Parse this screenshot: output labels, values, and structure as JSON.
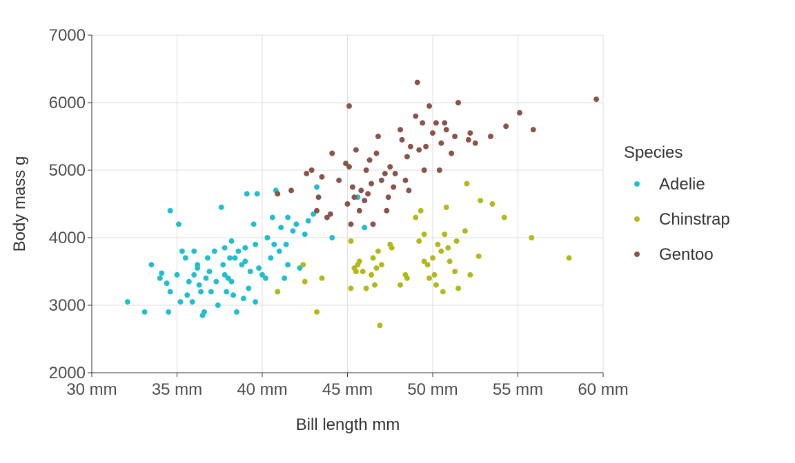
{
  "chart_data": {
    "type": "scatter",
    "title": "",
    "xlabel": "Bill length mm",
    "ylabel": "Body mass g",
    "xlim": [
      30,
      60
    ],
    "ylim": [
      2000,
      7000
    ],
    "x_ticks": [
      "30 mm",
      "35 mm",
      "40 mm",
      "45 mm",
      "50 mm",
      "55 mm",
      "60 mm"
    ],
    "y_ticks": [
      "2000",
      "3000",
      "4000",
      "5000",
      "6000",
      "7000"
    ],
    "grid": true,
    "legend": {
      "title": "Species",
      "placement": "right"
    },
    "series": [
      {
        "name": "Adelie",
        "color": "#1fbfcf",
        "points": [
          [
            32.1,
            3050
          ],
          [
            33.1,
            2900
          ],
          [
            33.5,
            3600
          ],
          [
            34.0,
            3400
          ],
          [
            34.1,
            3475
          ],
          [
            34.4,
            3325
          ],
          [
            34.5,
            2900
          ],
          [
            34.6,
            4400
          ],
          [
            34.6,
            3200
          ],
          [
            35.0,
            3450
          ],
          [
            35.1,
            4200
          ],
          [
            35.2,
            3050
          ],
          [
            35.3,
            3800
          ],
          [
            35.5,
            3700
          ],
          [
            35.6,
            3150
          ],
          [
            35.7,
            3350
          ],
          [
            35.9,
            3050
          ],
          [
            36.0,
            3450
          ],
          [
            36.0,
            3800
          ],
          [
            36.2,
            3550
          ],
          [
            36.3,
            3300
          ],
          [
            36.4,
            3200
          ],
          [
            36.5,
            2850
          ],
          [
            36.6,
            2900
          ],
          [
            36.7,
            3400
          ],
          [
            36.8,
            3700
          ],
          [
            36.9,
            3500
          ],
          [
            37.0,
            3200
          ],
          [
            37.2,
            3800
          ],
          [
            37.3,
            3350
          ],
          [
            37.4,
            3000
          ],
          [
            37.6,
            4450
          ],
          [
            37.7,
            3600
          ],
          [
            37.8,
            3850
          ],
          [
            37.9,
            3200
          ],
          [
            38.0,
            3400
          ],
          [
            38.1,
            3700
          ],
          [
            38.2,
            3950
          ],
          [
            38.3,
            3150
          ],
          [
            38.5,
            2900
          ],
          [
            38.6,
            3800
          ],
          [
            38.8,
            3600
          ],
          [
            38.9,
            3100
          ],
          [
            39.0,
            3650
          ],
          [
            39.1,
            4650
          ],
          [
            39.2,
            3250
          ],
          [
            39.3,
            3500
          ],
          [
            39.5,
            4200
          ],
          [
            39.6,
            3900
          ],
          [
            39.7,
            4650
          ],
          [
            39.8,
            3550
          ],
          [
            40.0,
            3450
          ],
          [
            40.2,
            3400
          ],
          [
            40.3,
            4000
          ],
          [
            40.5,
            3700
          ],
          [
            40.6,
            4300
          ],
          [
            40.8,
            4700
          ],
          [
            40.9,
            3200
          ],
          [
            41.0,
            3800
          ],
          [
            41.1,
            4150
          ],
          [
            41.3,
            3400
          ],
          [
            41.4,
            3900
          ],
          [
            41.5,
            4300
          ],
          [
            41.8,
            4100
          ],
          [
            42.0,
            4200
          ],
          [
            42.2,
            3550
          ],
          [
            42.5,
            4050
          ],
          [
            42.7,
            4250
          ],
          [
            43.0,
            4350
          ],
          [
            43.2,
            4750
          ],
          [
            44.1,
            4000
          ],
          [
            45.6,
            4600
          ],
          [
            46.0,
            4150
          ],
          [
            36.2,
            3600
          ],
          [
            37.8,
            3450
          ],
          [
            38.4,
            3700
          ],
          [
            39.0,
            3850
          ],
          [
            40.7,
            3900
          ],
          [
            41.5,
            3600
          ],
          [
            38.2,
            3350
          ],
          [
            39.6,
            3050
          ]
        ]
      },
      {
        "name": "Chinstrap",
        "color": "#b3b91a",
        "points": [
          [
            40.9,
            3200
          ],
          [
            42.4,
            3600
          ],
          [
            42.5,
            3350
          ],
          [
            43.2,
            2900
          ],
          [
            43.5,
            3400
          ],
          [
            45.2,
            3950
          ],
          [
            45.4,
            3550
          ],
          [
            45.5,
            3500
          ],
          [
            45.6,
            3600
          ],
          [
            45.7,
            3650
          ],
          [
            45.9,
            3500
          ],
          [
            46.1,
            3250
          ],
          [
            46.4,
            3450
          ],
          [
            46.5,
            3700
          ],
          [
            46.6,
            3300
          ],
          [
            46.8,
            3800
          ],
          [
            46.9,
            2700
          ],
          [
            47.0,
            3600
          ],
          [
            47.5,
            3900
          ],
          [
            47.6,
            3850
          ],
          [
            48.1,
            3300
          ],
          [
            48.5,
            3400
          ],
          [
            49.0,
            4300
          ],
          [
            49.2,
            3950
          ],
          [
            49.3,
            4400
          ],
          [
            49.5,
            4050
          ],
          [
            49.7,
            3600
          ],
          [
            49.8,
            3400
          ],
          [
            50.0,
            3700
          ],
          [
            50.1,
            3450
          ],
          [
            50.2,
            3300
          ],
          [
            50.3,
            3900
          ],
          [
            50.5,
            3800
          ],
          [
            50.7,
            4050
          ],
          [
            50.8,
            4450
          ],
          [
            51.0,
            3650
          ],
          [
            51.3,
            3500
          ],
          [
            51.4,
            3950
          ],
          [
            51.5,
            3250
          ],
          [
            52.0,
            4800
          ],
          [
            52.2,
            3450
          ],
          [
            52.7,
            3725
          ],
          [
            52.8,
            4550
          ],
          [
            53.5,
            4500
          ],
          [
            54.2,
            4300
          ],
          [
            55.8,
            4000
          ],
          [
            58.0,
            3700
          ],
          [
            45.2,
            3250
          ],
          [
            46.7,
            3550
          ],
          [
            48.4,
            3450
          ],
          [
            49.5,
            3650
          ],
          [
            50.9,
            3850
          ],
          [
            51.9,
            4100
          ],
          [
            50.6,
            3200
          ]
        ]
      },
      {
        "name": "Gentoo",
        "color": "#8b544a",
        "points": [
          [
            40.9,
            4650
          ],
          [
            41.7,
            4700
          ],
          [
            42.6,
            4950
          ],
          [
            42.9,
            5000
          ],
          [
            43.2,
            4400
          ],
          [
            43.3,
            4600
          ],
          [
            43.5,
            4900
          ],
          [
            43.8,
            4300
          ],
          [
            44.0,
            4350
          ],
          [
            44.5,
            4850
          ],
          [
            44.9,
            5100
          ],
          [
            45.0,
            4500
          ],
          [
            45.1,
            5050
          ],
          [
            45.2,
            4200
          ],
          [
            45.3,
            4750
          ],
          [
            45.5,
            5300
          ],
          [
            45.7,
            4400
          ],
          [
            45.8,
            4700
          ],
          [
            46.0,
            4550
          ],
          [
            46.1,
            5000
          ],
          [
            46.2,
            4650
          ],
          [
            46.4,
            4800
          ],
          [
            46.5,
            4200
          ],
          [
            46.7,
            5250
          ],
          [
            46.8,
            5500
          ],
          [
            47.0,
            4850
          ],
          [
            47.2,
            4950
          ],
          [
            47.3,
            4400
          ],
          [
            47.5,
            5050
          ],
          [
            47.7,
            4750
          ],
          [
            48.1,
            5600
          ],
          [
            48.2,
            5450
          ],
          [
            48.4,
            4850
          ],
          [
            48.5,
            5200
          ],
          [
            48.7,
            5350
          ],
          [
            49.0,
            5800
          ],
          [
            49.1,
            6300
          ],
          [
            49.2,
            5300
          ],
          [
            49.4,
            5700
          ],
          [
            49.5,
            5000
          ],
          [
            49.8,
            5950
          ],
          [
            50.0,
            5550
          ],
          [
            50.2,
            5700
          ],
          [
            50.4,
            5000
          ],
          [
            50.5,
            5400
          ],
          [
            50.8,
            5600
          ],
          [
            51.1,
            5250
          ],
          [
            51.3,
            5500
          ],
          [
            51.5,
            6000
          ],
          [
            52.1,
            5450
          ],
          [
            52.2,
            5550
          ],
          [
            52.5,
            5400
          ],
          [
            53.4,
            5500
          ],
          [
            54.3,
            5650
          ],
          [
            55.1,
            5850
          ],
          [
            55.9,
            5600
          ],
          [
            59.6,
            6050
          ],
          [
            45.1,
            5950
          ],
          [
            47.4,
            4600
          ],
          [
            48.6,
            4700
          ],
          [
            49.6,
            5350
          ],
          [
            46.3,
            5150
          ],
          [
            44.1,
            5250
          ],
          [
            47.8,
            4950
          ],
          [
            50.7,
            5700
          ],
          [
            45.4,
            4600
          ]
        ]
      }
    ]
  }
}
